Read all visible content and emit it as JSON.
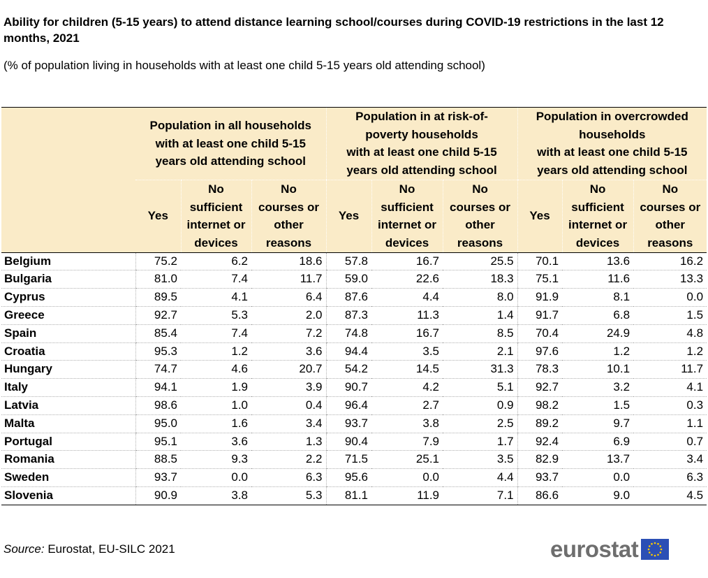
{
  "title": "Ability for children (5-15 years) to attend distance learning school/courses during COVID-19 restrictions in the last 12 months, 2021",
  "subtitle": "(% of population living in households with at least one child 5-15 years old attending school)",
  "source_label": "Source:",
  "source_text": "Eurostat, EU-SILC 2021",
  "logo_text": "eurostat",
  "colors": {
    "header_bg": "#faebc8",
    "logo_grey": "#6e6e6e",
    "flag_blue": "#2b4fb5",
    "flag_star": "#ffcc00"
  },
  "chart_data": {
    "type": "table",
    "column_groups": [
      [
        "Population in all households",
        "with at least one child 5-15",
        "years old attending school"
      ],
      [
        "Population in at risk-of-",
        "poverty households",
        "with at least one child 5-15",
        "years old attending school"
      ],
      [
        "Population in overcrowded",
        "households",
        "with at least one child 5-15",
        "years old attending school"
      ]
    ],
    "sub_columns": [
      [
        "Yes"
      ],
      [
        "No",
        "sufficient",
        "internet or",
        "devices"
      ],
      [
        "No",
        "courses or",
        "other",
        "reasons"
      ]
    ],
    "rows": [
      {
        "country": "Belgium",
        "values": [
          "75.2",
          "6.2",
          "18.6",
          "57.8",
          "16.7",
          "25.5",
          "70.1",
          "13.6",
          "16.2"
        ]
      },
      {
        "country": "Bulgaria",
        "values": [
          "81.0",
          "7.4",
          "11.7",
          "59.0",
          "22.6",
          "18.3",
          "75.1",
          "11.6",
          "13.3"
        ]
      },
      {
        "country": "Cyprus",
        "values": [
          "89.5",
          "4.1",
          "6.4",
          "87.6",
          "4.4",
          "8.0",
          "91.9",
          "8.1",
          "0.0"
        ]
      },
      {
        "country": "Greece",
        "values": [
          "92.7",
          "5.3",
          "2.0",
          "87.3",
          "11.3",
          "1.4",
          "91.7",
          "6.8",
          "1.5"
        ]
      },
      {
        "country": "Spain",
        "values": [
          "85.4",
          "7.4",
          "7.2",
          "74.8",
          "16.7",
          "8.5",
          "70.4",
          "24.9",
          "4.8"
        ]
      },
      {
        "country": "Croatia",
        "values": [
          "95.3",
          "1.2",
          "3.6",
          "94.4",
          "3.5",
          "2.1",
          "97.6",
          "1.2",
          "1.2"
        ]
      },
      {
        "country": "Hungary",
        "values": [
          "74.7",
          "4.6",
          "20.7",
          "54.2",
          "14.5",
          "31.3",
          "78.3",
          "10.1",
          "11.7"
        ]
      },
      {
        "country": "Italy",
        "values": [
          "94.1",
          "1.9",
          "3.9",
          "90.7",
          "4.2",
          "5.1",
          "92.7",
          "3.2",
          "4.1"
        ]
      },
      {
        "country": "Latvia",
        "values": [
          "98.6",
          "1.0",
          "0.4",
          "96.4",
          "2.7",
          "0.9",
          "98.2",
          "1.5",
          "0.3"
        ]
      },
      {
        "country": "Malta",
        "values": [
          "95.0",
          "1.6",
          "3.4",
          "93.7",
          "3.8",
          "2.5",
          "89.2",
          "9.7",
          "1.1"
        ]
      },
      {
        "country": "Portugal",
        "values": [
          "95.1",
          "3.6",
          "1.3",
          "90.4",
          "7.9",
          "1.7",
          "92.4",
          "6.9",
          "0.7"
        ]
      },
      {
        "country": "Romania",
        "values": [
          "88.5",
          "9.3",
          "2.2",
          "71.5",
          "25.1",
          "3.5",
          "82.9",
          "13.7",
          "3.4"
        ]
      },
      {
        "country": "Sweden",
        "values": [
          "93.7",
          "0.0",
          "6.3",
          "95.6",
          "0.0",
          "4.4",
          "93.7",
          "0.0",
          "6.3"
        ]
      },
      {
        "country": "Slovenia",
        "values": [
          "90.9",
          "3.8",
          "5.3",
          "81.1",
          "11.9",
          "7.1",
          "86.6",
          "9.0",
          "4.5"
        ]
      }
    ]
  }
}
